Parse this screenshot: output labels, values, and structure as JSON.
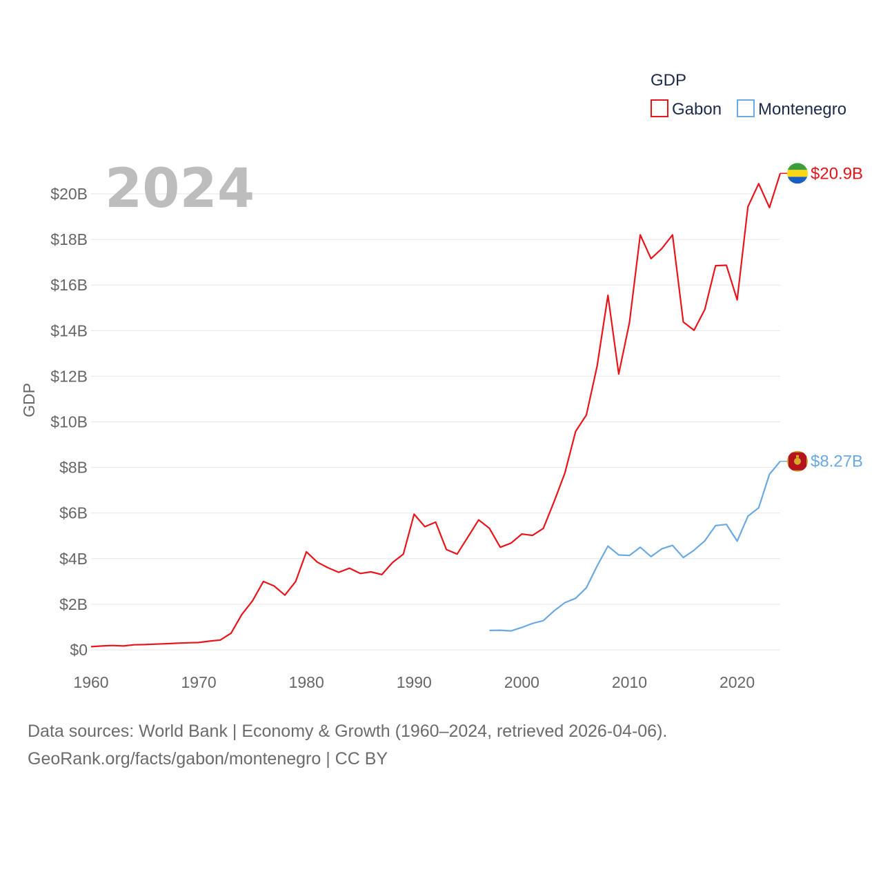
{
  "chart_data": {
    "type": "line",
    "title": "GDP",
    "highlight_year": "2024",
    "ylabel": "GDP",
    "xlabel": "",
    "xlim": [
      1960,
      2024
    ],
    "ylim": [
      0,
      21
    ],
    "x_ticks": [
      "1960",
      "1970",
      "1980",
      "1990",
      "2000",
      "2010",
      "2020"
    ],
    "y_ticks": [
      "$0",
      "$2B",
      "$4B",
      "$6B",
      "$8B",
      "$10B",
      "$12B",
      "$14B",
      "$16B",
      "$18B",
      "$20B"
    ],
    "legend_title": "GDP",
    "series": [
      {
        "name": "Gabon",
        "color": "#e8141a",
        "end_label": "$20.9B",
        "flag": "gabon-flag",
        "x": [
          1960,
          1961,
          1962,
          1963,
          1964,
          1965,
          1966,
          1967,
          1968,
          1969,
          1970,
          1971,
          1972,
          1973,
          1974,
          1975,
          1976,
          1977,
          1978,
          1979,
          1980,
          1981,
          1982,
          1983,
          1984,
          1985,
          1986,
          1987,
          1988,
          1989,
          1990,
          1991,
          1992,
          1993,
          1994,
          1995,
          1996,
          1997,
          1998,
          1999,
          2000,
          2001,
          2002,
          2003,
          2004,
          2005,
          2006,
          2007,
          2008,
          2009,
          2010,
          2011,
          2012,
          2013,
          2014,
          2015,
          2016,
          2017,
          2018,
          2019,
          2020,
          2021,
          2022,
          2023,
          2024
        ],
        "values": [
          0.14,
          0.17,
          0.19,
          0.17,
          0.22,
          0.23,
          0.25,
          0.27,
          0.29,
          0.31,
          0.32,
          0.38,
          0.43,
          0.73,
          1.55,
          2.15,
          3.0,
          2.8,
          2.4,
          3.0,
          4.3,
          3.85,
          3.6,
          3.4,
          3.58,
          3.35,
          3.42,
          3.3,
          3.83,
          4.2,
          5.95,
          5.4,
          5.6,
          4.4,
          4.2,
          4.95,
          5.7,
          5.33,
          4.5,
          4.68,
          5.08,
          5.02,
          5.33,
          6.5,
          7.75,
          9.58,
          10.3,
          12.45,
          15.55,
          12.1,
          14.36,
          18.2,
          17.16,
          17.6,
          18.2,
          14.38,
          14.02,
          14.93,
          16.85,
          16.87,
          15.35,
          19.44,
          20.45,
          19.4,
          20.9
        ]
      },
      {
        "name": "Montenegro",
        "color": "#6aa9e3",
        "end_label": "$8.27B",
        "flag": "montenegro-flag",
        "x": [
          1997,
          1998,
          1999,
          2000,
          2001,
          2002,
          2003,
          2004,
          2005,
          2006,
          2007,
          2008,
          2009,
          2010,
          2011,
          2012,
          2013,
          2014,
          2015,
          2016,
          2017,
          2018,
          2019,
          2020,
          2021,
          2022,
          2023,
          2024
        ],
        "values": [
          0.85,
          0.86,
          0.83,
          0.98,
          1.16,
          1.28,
          1.71,
          2.07,
          2.26,
          2.72,
          3.68,
          4.55,
          4.16,
          4.14,
          4.5,
          4.09,
          4.43,
          4.58,
          4.05,
          4.37,
          4.78,
          5.45,
          5.5,
          4.77,
          5.86,
          6.23,
          7.7,
          8.27
        ]
      }
    ]
  },
  "footer": {
    "line1": "Data sources: World Bank | Economy & Growth (1960–2024, retrieved 2026-04-06).",
    "line2": "GeoRank.org/facts/gabon/montenegro | CC BY"
  }
}
